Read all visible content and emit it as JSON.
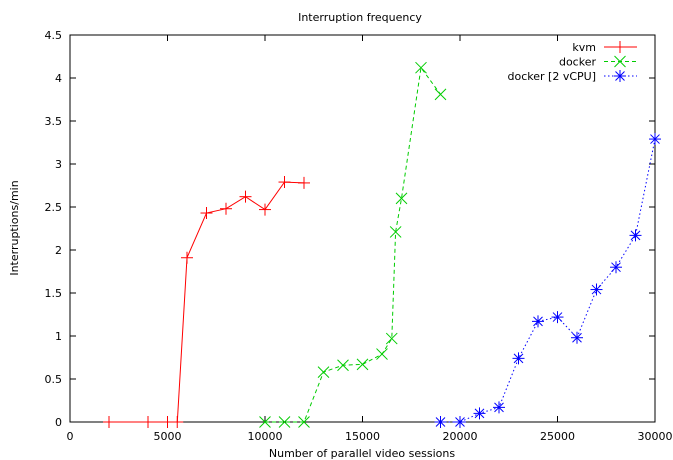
{
  "chart_data": {
    "type": "line",
    "title": "Interruption frequency",
    "xlabel": "Number of parallel video sessions",
    "ylabel": "Interruptions/min",
    "xlim": [
      0,
      30000
    ],
    "ylim": [
      0,
      4.5
    ],
    "xticks": [
      0,
      5000,
      10000,
      15000,
      20000,
      25000,
      30000
    ],
    "yticks": [
      0,
      0.5,
      1,
      1.5,
      2,
      2.5,
      3,
      3.5,
      4,
      4.5
    ],
    "xtick_labels": [
      "0",
      "5000",
      "10000",
      "15000",
      "20000",
      "25000",
      "30000"
    ],
    "ytick_labels": [
      "0",
      "0.5",
      "1",
      "1.5",
      "2",
      "2.5",
      "3",
      "3.5",
      "4",
      "4.5"
    ],
    "grid": false,
    "legend_position": "top-right",
    "series": [
      {
        "name": "kvm",
        "color": "#ff0000",
        "line_style": "solid",
        "marker": "plus",
        "x": [
          2000,
          4000,
          5000,
          5500,
          6000,
          7000,
          8000,
          9000,
          10000,
          11000,
          12000
        ],
        "y": [
          0,
          0,
          0,
          0,
          1.91,
          2.43,
          2.48,
          2.62,
          2.47,
          2.79,
          2.78
        ]
      },
      {
        "name": "docker",
        "color": "#00cc00",
        "line_style": "dashed",
        "marker": "cross",
        "x": [
          10000,
          11000,
          12000,
          13000,
          14000,
          15000,
          16000,
          16500,
          16700,
          17000,
          18000,
          19000
        ],
        "y": [
          0,
          0,
          0,
          0.58,
          0.66,
          0.67,
          0.79,
          0.97,
          2.21,
          2.6,
          4.12,
          3.81
        ]
      },
      {
        "name": "docker [2 vCPU]",
        "color": "#0000ff",
        "line_style": "dotted",
        "marker": "star",
        "x": [
          19000,
          20000,
          21000,
          22000,
          23000,
          24000,
          25000,
          26000,
          27000,
          28000,
          29000,
          30000
        ],
        "y": [
          0,
          0,
          0.1,
          0.17,
          0.74,
          1.17,
          1.22,
          0.98,
          1.54,
          1.8,
          2.17,
          3.29
        ]
      }
    ]
  }
}
